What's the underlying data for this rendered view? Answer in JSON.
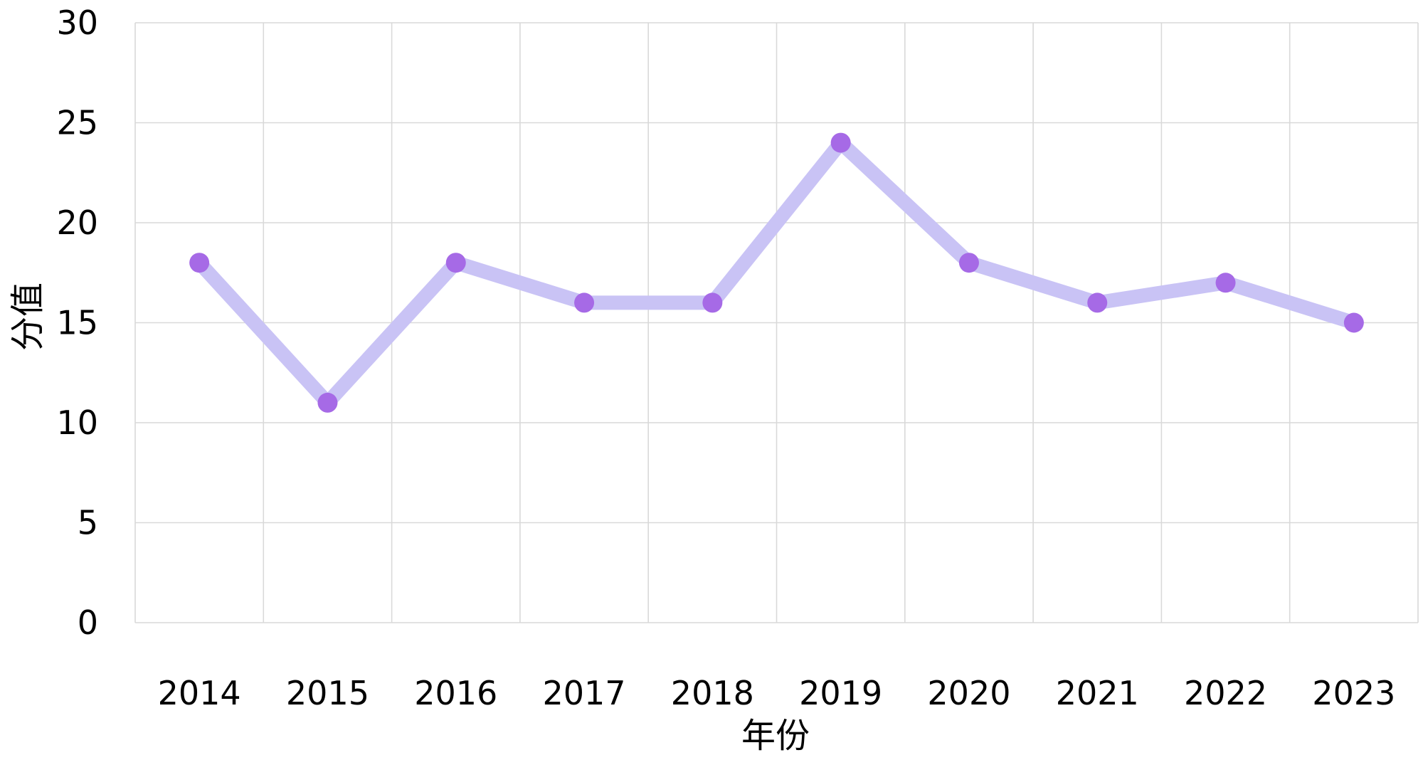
{
  "chart_data": {
    "type": "line",
    "title": "",
    "xlabel": "年份",
    "ylabel": "分值",
    "categories": [
      "2014",
      "2015",
      "2016",
      "2017",
      "2018",
      "2019",
      "2020",
      "2021",
      "2022",
      "2023"
    ],
    "series": [
      {
        "values": [
          18,
          11,
          18,
          16,
          16,
          24,
          18,
          16,
          17,
          15
        ]
      }
    ],
    "ylim": [
      0,
      30
    ],
    "yticks": [
      "0",
      "5",
      "10",
      "15",
      "20",
      "25",
      "30"
    ],
    "grid": true,
    "legend": "none",
    "colors": {
      "line": "#c9c3f5",
      "marker": "#a66ae6",
      "grid": "#d9d9d9"
    }
  }
}
